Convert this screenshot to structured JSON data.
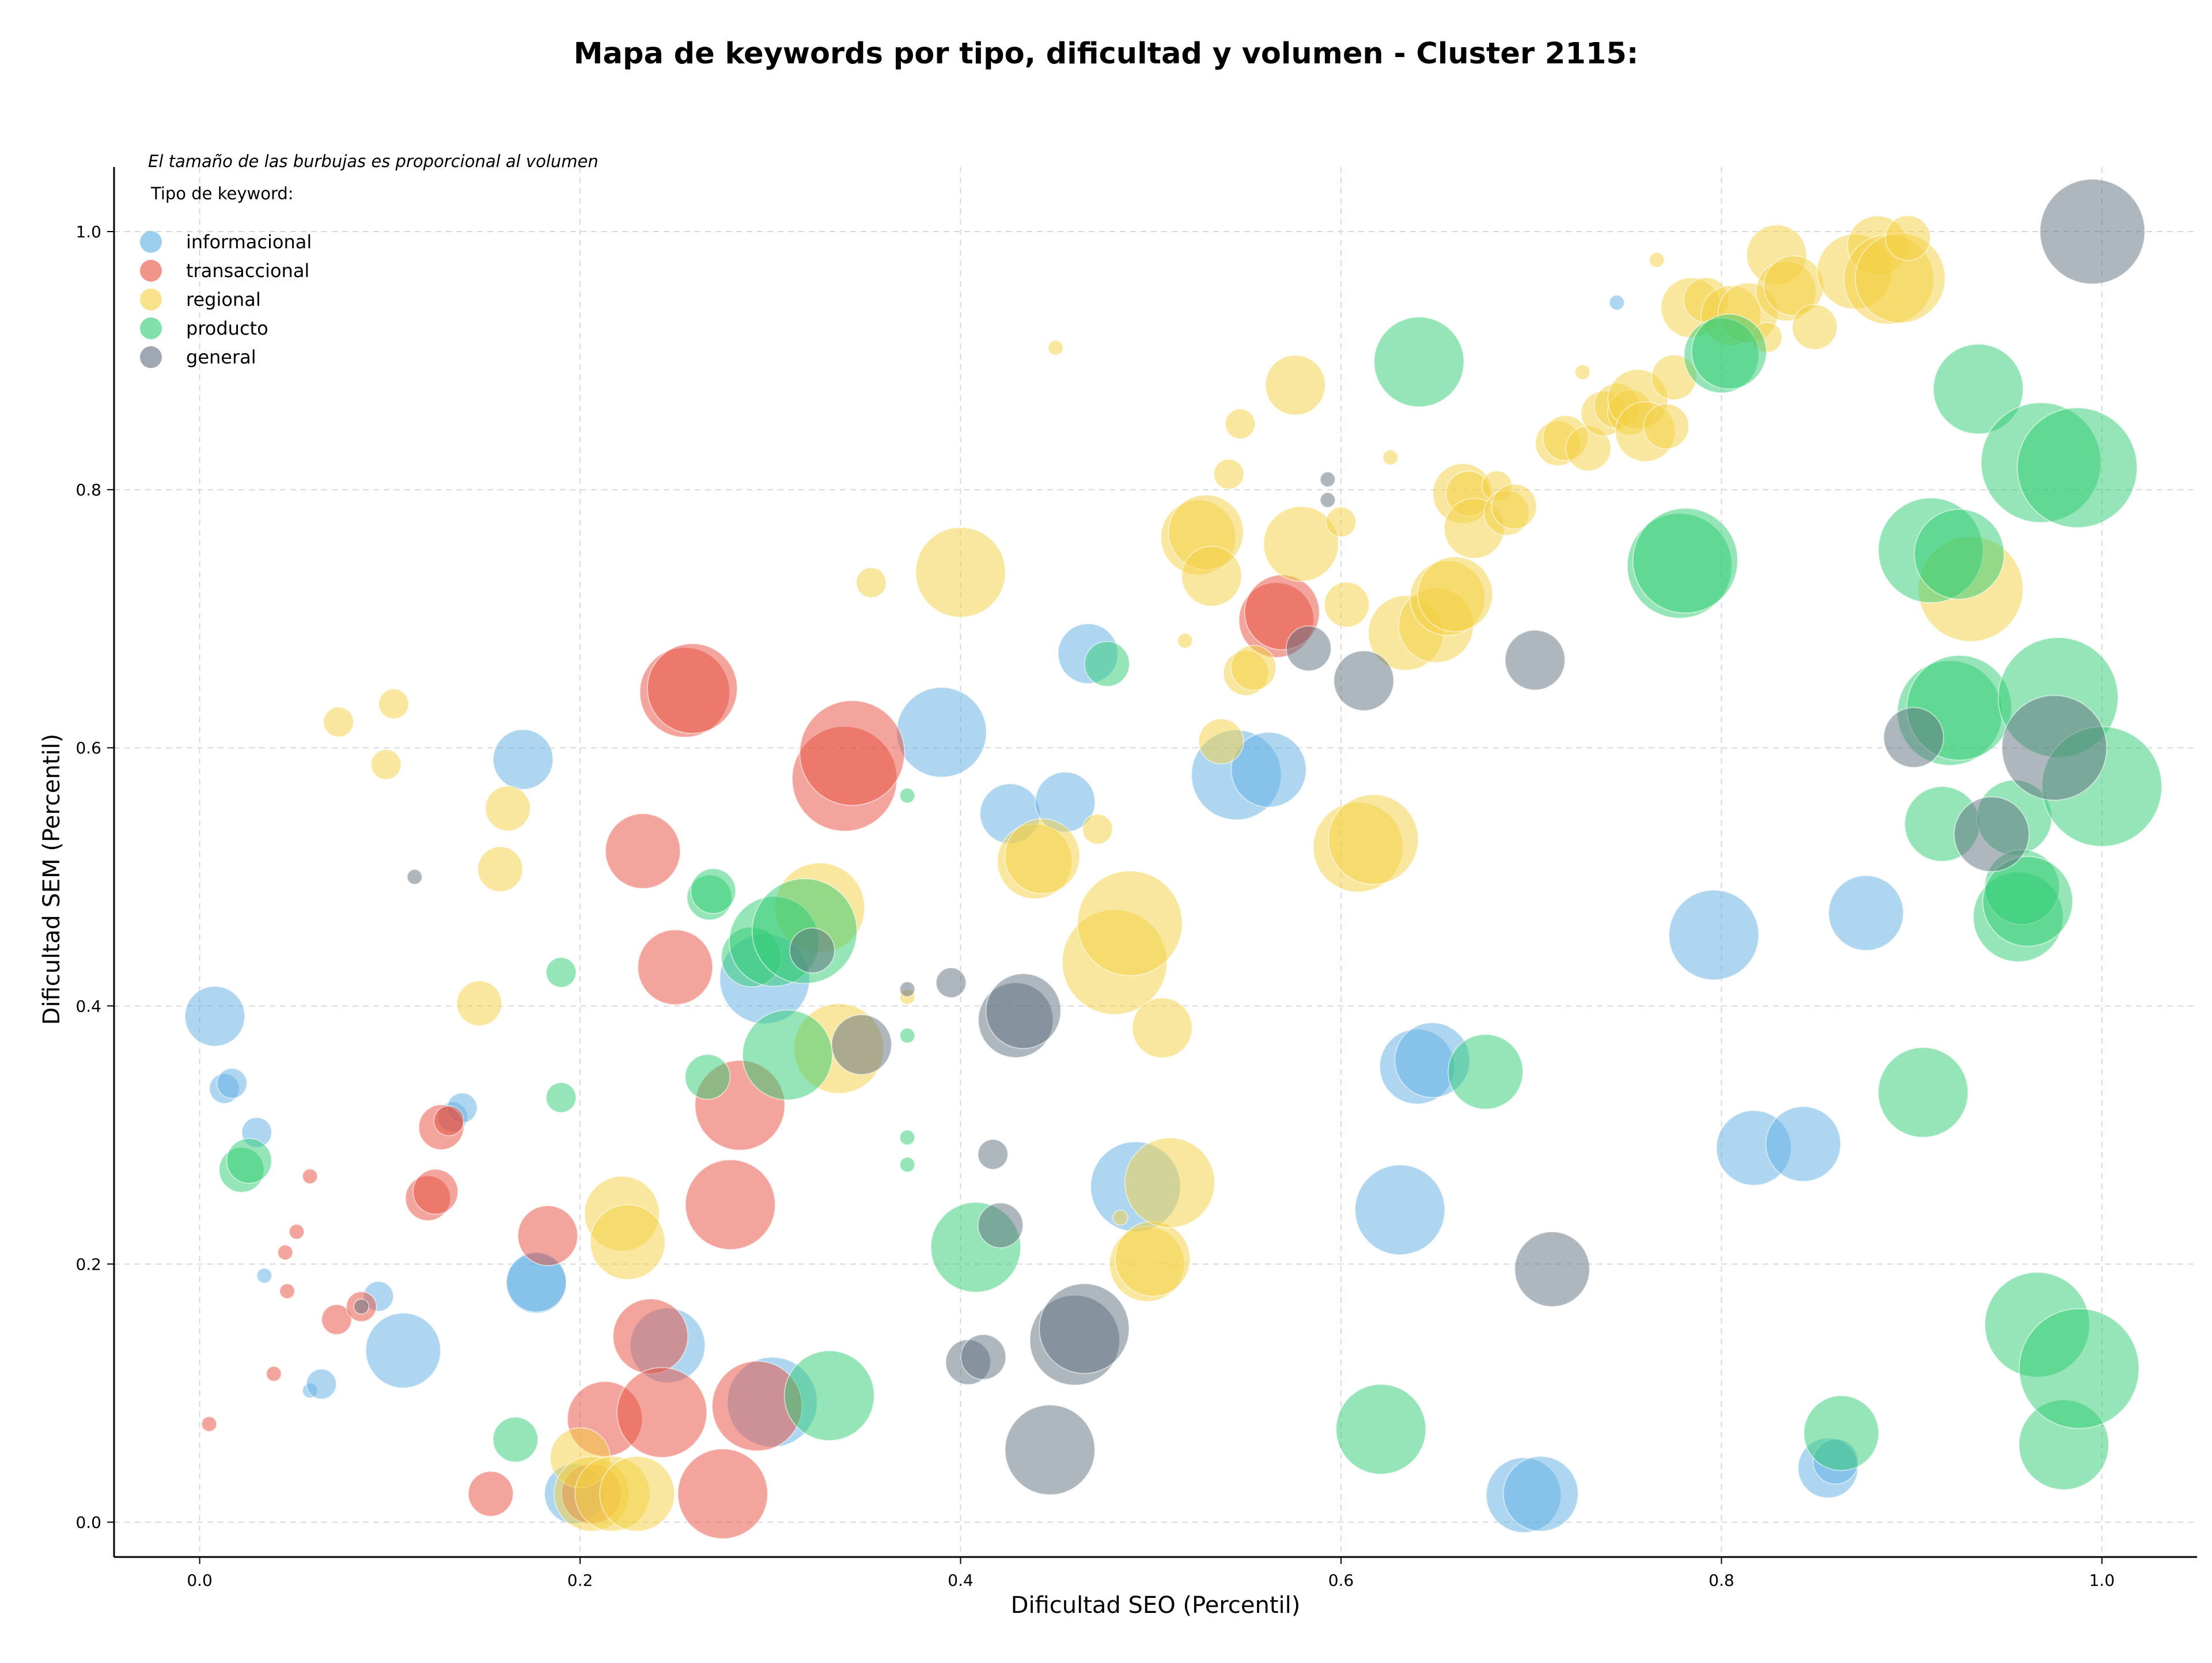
{
  "chart_data": {
    "type": "scatter",
    "title": "Mapa de keywords por tipo, dificultad y volumen - Cluster 2115:",
    "xlabel": "Dificultad SEO (Percentil)",
    "ylabel": "Dificultad SEM (Percentil)",
    "note": "El tamaño de las burbujas es proporcional al volumen",
    "legend_title": "Tipo de keyword:",
    "legend_position": "top-left",
    "xlim": [
      -0.045,
      1.05
    ],
    "ylim": [
      -0.027,
      1.05
    ],
    "x_ticks": [
      "0.0",
      "0.2",
      "0.4",
      "0.6",
      "0.8",
      "1.0"
    ],
    "y_ticks": [
      "0.0",
      "0.2",
      "0.4",
      "0.6",
      "0.8",
      "1.0"
    ],
    "grid": true,
    "series": [
      {
        "name": "informacional",
        "color": "#5DADE2",
        "points": [
          [
            0.008,
            0.392,
            4
          ],
          [
            0.013,
            0.336,
            2
          ],
          [
            0.017,
            0.34,
            2
          ],
          [
            0.03,
            0.302,
            2
          ],
          [
            0.034,
            0.191,
            1
          ],
          [
            0.058,
            0.102,
            1
          ],
          [
            0.064,
            0.107,
            2
          ],
          [
            0.094,
            0.175,
            2
          ],
          [
            0.107,
            0.133,
            5
          ],
          [
            0.133,
            0.314,
            2
          ],
          [
            0.138,
            0.321,
            2
          ],
          [
            0.17,
            0.591,
            4
          ],
          [
            0.177,
            0.185,
            4
          ],
          [
            0.177,
            0.186,
            4
          ],
          [
            0.197,
            0.022,
            4
          ],
          [
            0.246,
            0.137,
            5
          ],
          [
            0.297,
            0.421,
            6
          ],
          [
            0.301,
            0.093,
            6
          ],
          [
            0.39,
            0.612,
            6
          ],
          [
            0.426,
            0.549,
            4
          ],
          [
            0.455,
            0.558,
            4
          ],
          [
            0.467,
            0.673,
            4
          ],
          [
            0.492,
            0.26,
            6
          ],
          [
            0.545,
            0.579,
            6
          ],
          [
            0.562,
            0.583,
            5
          ],
          [
            0.631,
            0.242,
            6
          ],
          [
            0.64,
            0.353,
            5
          ],
          [
            0.648,
            0.358,
            5
          ],
          [
            0.696,
            0.021,
            5
          ],
          [
            0.705,
            0.022,
            5
          ],
          [
            0.745,
            0.945,
            1
          ],
          [
            0.796,
            0.455,
            6
          ],
          [
            0.817,
            0.29,
            5
          ],
          [
            0.843,
            0.293,
            5
          ],
          [
            0.856,
            0.042,
            4
          ],
          [
            0.86,
            0.047,
            3
          ],
          [
            0.876,
            0.472,
            5
          ]
        ]
      },
      {
        "name": "transaccional",
        "color": "#E74C3C",
        "points": [
          [
            0.005,
            0.076,
            1
          ],
          [
            0.039,
            0.115,
            1
          ],
          [
            0.045,
            0.209,
            1
          ],
          [
            0.046,
            0.179,
            1
          ],
          [
            0.051,
            0.225,
            1
          ],
          [
            0.058,
            0.268,
            1
          ],
          [
            0.072,
            0.157,
            2
          ],
          [
            0.085,
            0.167,
            2
          ],
          [
            0.12,
            0.251,
            3
          ],
          [
            0.124,
            0.256,
            3
          ],
          [
            0.127,
            0.306,
            3
          ],
          [
            0.131,
            0.311,
            2
          ],
          [
            0.153,
            0.022,
            3
          ],
          [
            0.183,
            0.222,
            4
          ],
          [
            0.206,
            0.022,
            4
          ],
          [
            0.213,
            0.08,
            5
          ],
          [
            0.233,
            0.52,
            5
          ],
          [
            0.237,
            0.144,
            5
          ],
          [
            0.243,
            0.085,
            6
          ],
          [
            0.25,
            0.43,
            5
          ],
          [
            0.255,
            0.643,
            6
          ],
          [
            0.259,
            0.646,
            6
          ],
          [
            0.275,
            0.022,
            6
          ],
          [
            0.279,
            0.246,
            6
          ],
          [
            0.284,
            0.323,
            6
          ],
          [
            0.293,
            0.09,
            6
          ],
          [
            0.339,
            0.576,
            7
          ],
          [
            0.343,
            0.596,
            7
          ],
          [
            0.566,
            0.699,
            5
          ],
          [
            0.569,
            0.705,
            5
          ]
        ]
      },
      {
        "name": "regional",
        "color": "#F4D03F",
        "points": [
          [
            0.073,
            0.62,
            2
          ],
          [
            0.098,
            0.587,
            2
          ],
          [
            0.102,
            0.634,
            2
          ],
          [
            0.147,
            0.402,
            3
          ],
          [
            0.158,
            0.506,
            3
          ],
          [
            0.162,
            0.553,
            3
          ],
          [
            0.2,
            0.05,
            4
          ],
          [
            0.206,
            0.022,
            5
          ],
          [
            0.217,
            0.022,
            5
          ],
          [
            0.222,
            0.239,
            5
          ],
          [
            0.225,
            0.217,
            5
          ],
          [
            0.23,
            0.022,
            5
          ],
          [
            0.326,
            0.476,
            6
          ],
          [
            0.336,
            0.367,
            6
          ],
          [
            0.353,
            0.728,
            2
          ],
          [
            0.372,
            0.407,
            1
          ],
          [
            0.4,
            0.736,
            6
          ],
          [
            0.439,
            0.512,
            5
          ],
          [
            0.443,
            0.516,
            5
          ],
          [
            0.45,
            0.91,
            1
          ],
          [
            0.472,
            0.537,
            2
          ],
          [
            0.484,
            0.236,
            1
          ],
          [
            0.481,
            0.434,
            7
          ],
          [
            0.489,
            0.464,
            7
          ],
          [
            0.498,
            0.2,
            5
          ],
          [
            0.501,
            0.204,
            5
          ],
          [
            0.506,
            0.383,
            4
          ],
          [
            0.51,
            0.263,
            6
          ],
          [
            0.518,
            0.683,
            1
          ],
          [
            0.525,
            0.763,
            5
          ],
          [
            0.529,
            0.767,
            5
          ],
          [
            0.532,
            0.733,
            4
          ],
          [
            0.537,
            0.605,
            3
          ],
          [
            0.541,
            0.812,
            2
          ],
          [
            0.547,
            0.851,
            2
          ],
          [
            0.55,
            0.658,
            3
          ],
          [
            0.554,
            0.662,
            3
          ],
          [
            0.576,
            0.881,
            4
          ],
          [
            0.579,
            0.758,
            5
          ],
          [
            0.6,
            0.775,
            2
          ],
          [
            0.603,
            0.711,
            3
          ],
          [
            0.609,
            0.523,
            6
          ],
          [
            0.617,
            0.529,
            6
          ],
          [
            0.626,
            0.825,
            1
          ],
          [
            0.634,
            0.689,
            5
          ],
          [
            0.65,
            0.695,
            5
          ],
          [
            0.656,
            0.716,
            5
          ],
          [
            0.66,
            0.719,
            5
          ],
          [
            0.664,
            0.797,
            4
          ],
          [
            0.667,
            0.797,
            3
          ],
          [
            0.67,
            0.77,
            4
          ],
          [
            0.682,
            0.803,
            2
          ],
          [
            0.687,
            0.782,
            3
          ],
          [
            0.691,
            0.787,
            3
          ],
          [
            0.714,
            0.836,
            3
          ],
          [
            0.718,
            0.84,
            3
          ],
          [
            0.727,
            0.891,
            1
          ],
          [
            0.73,
            0.832,
            3
          ],
          [
            0.738,
            0.859,
            3
          ],
          [
            0.745,
            0.865,
            3
          ],
          [
            0.752,
            0.86,
            3
          ],
          [
            0.756,
            0.87,
            4
          ],
          [
            0.76,
            0.845,
            4
          ],
          [
            0.766,
            0.978,
            1
          ],
          [
            0.771,
            0.849,
            3
          ],
          [
            0.775,
            0.887,
            3
          ],
          [
            0.784,
            0.941,
            4
          ],
          [
            0.792,
            0.947,
            3
          ],
          [
            0.805,
            0.935,
            4
          ],
          [
            0.814,
            0.937,
            4
          ],
          [
            0.824,
            0.918,
            2
          ],
          [
            0.829,
            0.982,
            4
          ],
          [
            0.834,
            0.954,
            4
          ],
          [
            0.838,
            0.958,
            4
          ],
          [
            0.849,
            0.926,
            3
          ],
          [
            0.87,
            0.969,
            5
          ],
          [
            0.882,
            0.989,
            4
          ],
          [
            0.888,
            0.963,
            6
          ],
          [
            0.894,
            0.964,
            6
          ],
          [
            0.898,
            0.995,
            3
          ],
          [
            0.931,
            0.723,
            7
          ]
        ]
      },
      {
        "name": "producto",
        "color": "#2ECC71",
        "points": [
          [
            0.022,
            0.273,
            3
          ],
          [
            0.026,
            0.28,
            3
          ],
          [
            0.166,
            0.064,
            3
          ],
          [
            0.19,
            0.426,
            2
          ],
          [
            0.19,
            0.329,
            2
          ],
          [
            0.267,
            0.345,
            3
          ],
          [
            0.268,
            0.484,
            3
          ],
          [
            0.27,
            0.489,
            3
          ],
          [
            0.29,
            0.438,
            4
          ],
          [
            0.302,
            0.45,
            6
          ],
          [
            0.309,
            0.362,
            6
          ],
          [
            0.318,
            0.458,
            7
          ],
          [
            0.331,
            0.098,
            6
          ],
          [
            0.372,
            0.563,
            1
          ],
          [
            0.372,
            0.377,
            1
          ],
          [
            0.372,
            0.298,
            1
          ],
          [
            0.372,
            0.277,
            1
          ],
          [
            0.408,
            0.213,
            6
          ],
          [
            0.477,
            0.665,
            3
          ],
          [
            0.621,
            0.072,
            6
          ],
          [
            0.641,
            0.899,
            6
          ],
          [
            0.676,
            0.349,
            5
          ],
          [
            0.778,
            0.741,
            7
          ],
          [
            0.781,
            0.745,
            7
          ],
          [
            0.8,
            0.904,
            5
          ],
          [
            0.804,
            0.907,
            5
          ],
          [
            0.863,
            0.069,
            5
          ],
          [
            0.906,
            0.333,
            6
          ],
          [
            0.91,
            0.753,
            7
          ],
          [
            0.916,
            0.541,
            5
          ],
          [
            0.92,
            0.627,
            7
          ],
          [
            0.925,
            0.631,
            7
          ],
          [
            0.925,
            0.75,
            6
          ],
          [
            0.935,
            0.878,
            6
          ],
          [
            0.954,
            0.546,
            5
          ],
          [
            0.956,
            0.469,
            6
          ],
          [
            0.958,
            0.492,
            5
          ],
          [
            0.961,
            0.481,
            6
          ],
          [
            0.966,
            0.153,
            7
          ],
          [
            0.968,
            0.821,
            8
          ],
          [
            0.977,
            0.639,
            8
          ],
          [
            0.98,
            0.06,
            6
          ],
          [
            0.987,
            0.817,
            8
          ],
          [
            0.988,
            0.119,
            8
          ],
          [
            1.0,
            0.57,
            8
          ]
        ]
      },
      {
        "name": "general",
        "color": "#5D6D7E",
        "points": [
          [
            0.085,
            0.167,
            1
          ],
          [
            0.113,
            0.5,
            1
          ],
          [
            0.322,
            0.443,
            3
          ],
          [
            0.348,
            0.37,
            4
          ],
          [
            0.372,
            0.413,
            1
          ],
          [
            0.395,
            0.418,
            2
          ],
          [
            0.404,
            0.124,
            3
          ],
          [
            0.412,
            0.128,
            3
          ],
          [
            0.417,
            0.285,
            2
          ],
          [
            0.421,
            0.23,
            3
          ],
          [
            0.429,
            0.389,
            5
          ],
          [
            0.433,
            0.396,
            5
          ],
          [
            0.447,
            0.056,
            6
          ],
          [
            0.46,
            0.141,
            6
          ],
          [
            0.465,
            0.15,
            6
          ],
          [
            0.583,
            0.677,
            3
          ],
          [
            0.593,
            0.808,
            1
          ],
          [
            0.593,
            0.792,
            1
          ],
          [
            0.612,
            0.652,
            4
          ],
          [
            0.702,
            0.668,
            4
          ],
          [
            0.711,
            0.196,
            5
          ],
          [
            0.901,
            0.608,
            4
          ],
          [
            0.942,
            0.533,
            5
          ],
          [
            0.975,
            0.6,
            7
          ],
          [
            0.995,
            1.0,
            7
          ]
        ]
      }
    ]
  }
}
